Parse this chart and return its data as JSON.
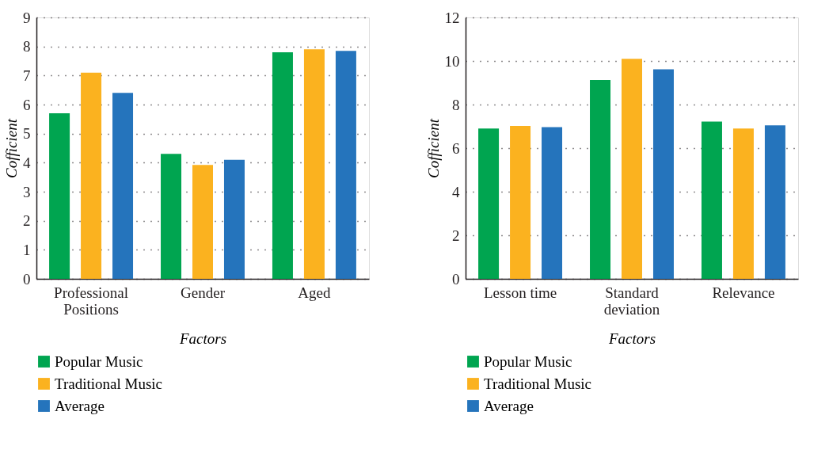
{
  "chart_data": [
    {
      "type": "bar",
      "xlabel": "Factors",
      "ylabel": "Cofficient",
      "categories": [
        "Professional\nPositions",
        "Gender",
        "Aged"
      ],
      "series": [
        {
          "name": "Popular Music",
          "color": "#00a550",
          "values": [
            5.7,
            4.3,
            7.8
          ]
        },
        {
          "name": "Traditional Music",
          "color": "#fbb21f",
          "values": [
            7.1,
            3.92,
            7.9
          ]
        },
        {
          "name": "Average",
          "color": "#2574bc",
          "values": [
            6.4,
            4.1,
            7.85
          ]
        }
      ],
      "ylim": [
        0,
        9
      ],
      "yticks": [
        0,
        1,
        2,
        3,
        4,
        5,
        6,
        7,
        8,
        9
      ],
      "grid": "y",
      "legend": "bottom"
    },
    {
      "type": "bar",
      "xlabel": "Factors",
      "ylabel": "Cofficient",
      "categories": [
        "Lesson time",
        "Standard\ndeviation",
        "Relevance"
      ],
      "series": [
        {
          "name": "Popular Music",
          "color": "#00a550",
          "values": [
            6.9,
            9.13,
            7.22
          ]
        },
        {
          "name": "Traditional Music",
          "color": "#fbb21f",
          "values": [
            7.02,
            10.1,
            6.9
          ]
        },
        {
          "name": "Average",
          "color": "#2574bc",
          "values": [
            6.96,
            9.62,
            7.05
          ]
        }
      ],
      "ylim": [
        0,
        12
      ],
      "yticks": [
        0,
        2,
        4,
        6,
        8,
        10,
        12
      ],
      "grid": "y",
      "legend": "bottom"
    }
  ]
}
